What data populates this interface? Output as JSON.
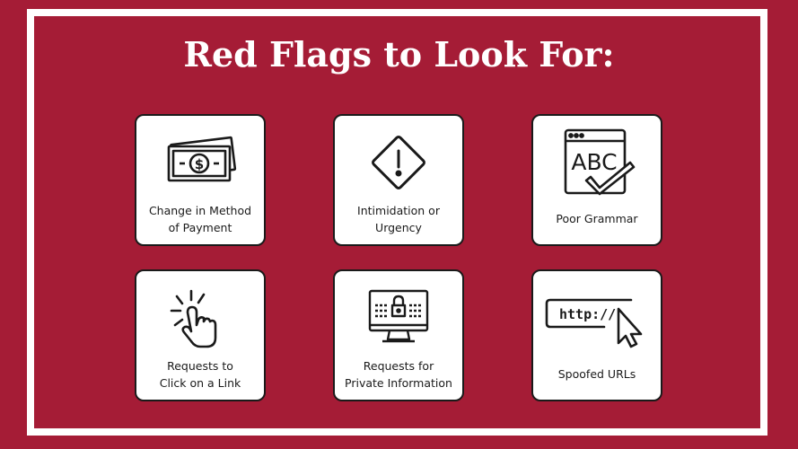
{
  "title": "Red Flags to Look For:",
  "colors": {
    "background": "#a51c36",
    "frame": "#ffffff",
    "card": "#ffffff",
    "ink": "#1a1a1a"
  },
  "cards": [
    {
      "icon": "money-icon",
      "line1": "Change in Method",
      "line2": "of Payment"
    },
    {
      "icon": "warning-icon",
      "line1": "Intimidation or",
      "line2": "Urgency"
    },
    {
      "icon": "abc-checkmark-icon",
      "line1": "Poor Grammar"
    },
    {
      "icon": "pointer-click-icon",
      "line1": "Requests to",
      "line2": "Click on a Link"
    },
    {
      "icon": "lock-monitor-icon",
      "line1": "Requests for",
      "line2": "Private Information"
    },
    {
      "icon": "url-cursor-icon",
      "line1": "Spoofed URLs",
      "url_text": "http://"
    }
  ]
}
